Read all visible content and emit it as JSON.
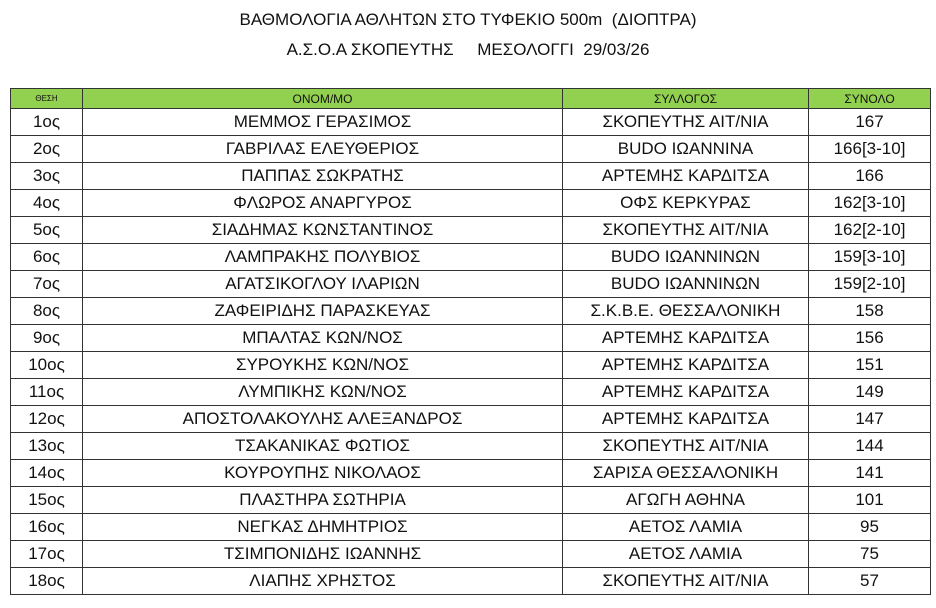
{
  "title": "ΒΑΘΜΟΛΟΓΙΑ ΑΘΛΗΤΩΝ ΣΤΟ ΤΥΦΕΚΙΟ 500m  (ΔΙΟΠΤΡΑ)",
  "subtitle": "Α.Σ.Ο.Α ΣΚΟΠΕΥΤΗΣ     ΜΕΣΟΛΟΓΓΙ  29/03/26",
  "header_color": "#92d050",
  "columns": [
    "ΘΕΣΗ",
    "ΟΝΟΜ/ΜΟ",
    "ΣΥΛΛΟΓΟΣ",
    "ΣΥΝΟΛΟ"
  ],
  "rows": [
    [
      "1ος",
      "ΜΕΜΜΟΣ ΓΕΡΑΣΙΜΟΣ",
      "ΣΚΟΠΕΥΤΗΣ ΑΙΤ/ΝΙΑ",
      "167"
    ],
    [
      "2ος",
      "ΓΑΒΡΙΛΑΣ ΕΛΕΥΘΕΡΙΟΣ",
      "BUDO ΙΩΑΝΝΙΝΑ",
      "166[3-10]"
    ],
    [
      "3ος",
      "ΠΑΠΠΑΣ ΣΩΚΡΑΤΗΣ",
      "ΑΡΤΕΜΗΣ ΚΑΡΔΙΤΣΑ",
      "166"
    ],
    [
      "4ος",
      "ΦΛΩΡΟΣ ΑΝΑΡΓΥΡΟΣ",
      "ΟΦΣ ΚΕΡΚΥΡΑΣ",
      "162[3-10]"
    ],
    [
      "5ος",
      "ΣΙΑΔΗΜΑΣ ΚΩΝΣΤΑΝΤΙΝΟΣ",
      "ΣΚΟΠΕΥΤΗΣ ΑΙΤ/ΝΙΑ",
      "162[2-10]"
    ],
    [
      "6ος",
      "ΛΑΜΠΡΑΚΗΣ ΠΟΛΥΒΙΟΣ",
      "BUDO ΙΩΑΝΝΙΝΩΝ",
      "159[3-10]"
    ],
    [
      "7ος",
      "ΑΓΑΤΣΙΚΟΓΛΟΥ ΙΛΑΡΙΩΝ",
      "BUDO ΙΩΑΝΝΙΝΩΝ",
      "159[2-10]"
    ],
    [
      "8ος",
      "ΖΑΦΕΙΡΙΔΗΣ ΠΑΡΑΣΚΕΥΑΣ",
      "Σ.Κ.Β.Ε. ΘΕΣΣΑΛΟΝΙΚΗ",
      "158"
    ],
    [
      "9ος",
      "ΜΠΑΛΤΑΣ ΚΩΝ/ΝΟΣ",
      "ΑΡΤΕΜΗΣ ΚΑΡΔΙΤΣΑ",
      "156"
    ],
    [
      "10ος",
      "ΣΥΡΟΥΚΗΣ ΚΩΝ/ΝΟΣ",
      "ΑΡΤΕΜΗΣ ΚΑΡΔΙΤΣΑ",
      "151"
    ],
    [
      "11ος",
      "ΛΥΜΠΙΚΗΣ ΚΩΝ/ΝΟΣ",
      "ΑΡΤΕΜΗΣ ΚΑΡΔΙΤΣΑ",
      "149"
    ],
    [
      "12ος",
      "ΑΠΟΣΤΟΛΑΚΟΥΛΗΣ ΑΛΕΞΑΝΔΡΟΣ",
      "ΑΡΤΕΜΗΣ ΚΑΡΔΙΤΣΑ",
      "147"
    ],
    [
      "13ος",
      "ΤΣΑΚΑΝΙΚΑΣ ΦΩΤΙΟΣ",
      "ΣΚΟΠΕΥΤΗΣ ΑΙΤ/ΝΙΑ",
      "144"
    ],
    [
      "14ος",
      "ΚΟΥΡΟΥΠΗΣ ΝΙΚΟΛΑΟΣ",
      "ΣΑΡΙΣΑ ΘΕΣΣΑΛΟΝΙΚΗ",
      "141"
    ],
    [
      "15ος",
      "ΠΛΑΣΤΗΡΑ ΣΩΤΗΡΙΑ",
      "ΑΓΩΓΗ ΑΘΗΝΑ",
      "101"
    ],
    [
      "16ος",
      "ΝΕΓΚΑΣ ΔΗΜΗΤΡΙΟΣ",
      "ΑΕΤΟΣ ΛΑΜΙΑ",
      "95"
    ],
    [
      "17ος",
      "ΤΣΙΜΠΟΝΙΔΗΣ ΙΩΑΝΝΗΣ",
      "ΑΕΤΟΣ ΛΑΜΙΑ",
      "75"
    ],
    [
      "18ος",
      "ΛΙΑΠΗΣ ΧΡΗΣΤΟΣ",
      "ΣΚΟΠΕΥΤΗΣ ΑΙΤ/ΝΙΑ",
      "57"
    ]
  ]
}
